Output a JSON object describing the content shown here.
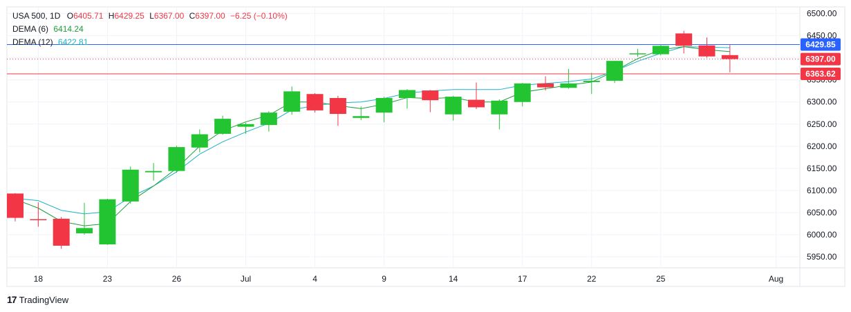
{
  "legend": {
    "symbol_label": "USA 500, 1D",
    "open_label": "O",
    "open": "6405.71",
    "high_label": "H",
    "high": "6429.25",
    "low_label": "L",
    "low": "6367.00",
    "close_label": "C",
    "close": "6397.00",
    "change": "−6.25 (−0.10%)",
    "dema6_label": "DEMA (6)",
    "dema6_value": "6414.24",
    "dema12_label": "DEMA (12)",
    "dema12_value": "6422.81"
  },
  "brand": {
    "name": "TradingView",
    "logo": "17"
  },
  "colors": {
    "up": "#22c531",
    "down": "#f23645",
    "dema6": "#1e9e3a",
    "dema12": "#1bb3c9",
    "blue_line": "#2962ff",
    "red_line": "#f23645",
    "grid": "#f0f3fa",
    "axis_border": "#e0e3eb"
  },
  "chart_data": {
    "type": "candlestick",
    "ylim": [
      5925,
      6515
    ],
    "y_ticks": [
      "5950.00",
      "6000.00",
      "6050.00",
      "6100.00",
      "6150.00",
      "6200.00",
      "6250.00",
      "6300.00",
      "6350.00",
      "6400.00",
      "6450.00",
      "6500.00"
    ],
    "y_tick_values": [
      5950,
      6000,
      6050,
      6100,
      6150,
      6200,
      6250,
      6300,
      6350,
      6400,
      6450,
      6500
    ],
    "x_ticks": [
      {
        "label": "18",
        "index": 1
      },
      {
        "label": "23",
        "index": 4
      },
      {
        "label": "26",
        "index": 7
      },
      {
        "label": "Jul",
        "index": 10
      },
      {
        "label": "4",
        "index": 13
      },
      {
        "label": "9",
        "index": 16
      },
      {
        "label": "14",
        "index": 19
      },
      {
        "label": "17",
        "index": 22
      },
      {
        "label": "22",
        "index": 25
      },
      {
        "label": "25",
        "index": 28
      },
      {
        "label": "Aug",
        "index": 33
      }
    ],
    "candles": [
      {
        "o": 6093,
        "h": 6094,
        "l": 6030,
        "c": 6038
      },
      {
        "o": 6035,
        "h": 6073,
        "l": 6018,
        "c": 6033
      },
      {
        "o": 6036,
        "h": 6040,
        "l": 5968,
        "c": 5975
      },
      {
        "o": 6003,
        "h": 6072,
        "l": 6000,
        "c": 6015
      },
      {
        "o": 5978,
        "h": 6081,
        "l": 5977,
        "c": 6080
      },
      {
        "o": 6075,
        "h": 6154,
        "l": 6070,
        "c": 6147
      },
      {
        "o": 6141,
        "h": 6162,
        "l": 6122,
        "c": 6144
      },
      {
        "o": 6144,
        "h": 6201,
        "l": 6140,
        "c": 6198
      },
      {
        "o": 6197,
        "h": 6238,
        "l": 6186,
        "c": 6227
      },
      {
        "o": 6228,
        "h": 6269,
        "l": 6226,
        "c": 6262
      },
      {
        "o": 6244,
        "h": 6253,
        "l": 6228,
        "c": 6250
      },
      {
        "o": 6248,
        "h": 6279,
        "l": 6233,
        "c": 6276
      },
      {
        "o": 6278,
        "h": 6335,
        "l": 6271,
        "c": 6324
      },
      {
        "o": 6318,
        "h": 6320,
        "l": 6276,
        "c": 6281
      },
      {
        "o": 6309,
        "h": 6314,
        "l": 6246,
        "c": 6273
      },
      {
        "o": 6264,
        "h": 6290,
        "l": 6259,
        "c": 6268
      },
      {
        "o": 6276,
        "h": 6312,
        "l": 6254,
        "c": 6309
      },
      {
        "o": 6309,
        "h": 6329,
        "l": 6285,
        "c": 6327
      },
      {
        "o": 6326,
        "h": 6327,
        "l": 6277,
        "c": 6304
      },
      {
        "o": 6272,
        "h": 6314,
        "l": 6258,
        "c": 6312
      },
      {
        "o": 6305,
        "h": 6344,
        "l": 6284,
        "c": 6288
      },
      {
        "o": 6272,
        "h": 6306,
        "l": 6238,
        "c": 6303
      },
      {
        "o": 6300,
        "h": 6343,
        "l": 6290,
        "c": 6342
      },
      {
        "o": 6342,
        "h": 6358,
        "l": 6326,
        "c": 6333
      },
      {
        "o": 6332,
        "h": 6375,
        "l": 6330,
        "c": 6342
      },
      {
        "o": 6345,
        "h": 6366,
        "l": 6318,
        "c": 6348
      },
      {
        "o": 6348,
        "h": 6393,
        "l": 6343,
        "c": 6393
      },
      {
        "o": 6408,
        "h": 6420,
        "l": 6402,
        "c": 6410
      },
      {
        "o": 6408,
        "h": 6430,
        "l": 6405,
        "c": 6427
      },
      {
        "o": 6455,
        "h": 6461,
        "l": 6410,
        "c": 6427
      },
      {
        "o": 6428,
        "h": 6446,
        "l": 6400,
        "c": 6403
      },
      {
        "o": 6406,
        "h": 6429,
        "l": 6367,
        "c": 6397
      }
    ],
    "dema6": [
      6080,
      6060,
      6030,
      6020,
      6025,
      6075,
      6110,
      6150,
      6200,
      6235,
      6255,
      6270,
      6300,
      6300,
      6292,
      6285,
      6295,
      6310,
      6308,
      6310,
      6300,
      6300,
      6322,
      6330,
      6338,
      6345,
      6370,
      6398,
      6418,
      6425,
      6418,
      6414
    ],
    "dema12": [
      6082,
      6077,
      6055,
      6047,
      6052,
      6085,
      6110,
      6142,
      6182,
      6210,
      6232,
      6252,
      6282,
      6292,
      6298,
      6300,
      6308,
      6320,
      6325,
      6328,
      6328,
      6328,
      6338,
      6342,
      6346,
      6352,
      6370,
      6392,
      6410,
      6425,
      6424,
      6422.81
    ],
    "price_lines": [
      {
        "value": 6429.85,
        "label": "6429.85",
        "style": "solid",
        "color_key": "blue_line"
      },
      {
        "value": 6397.0,
        "label": "6397.00",
        "style": "dotted",
        "color_key": "red_line"
      },
      {
        "value": 6363.62,
        "label": "6363.62",
        "style": "solid",
        "color_key": "red_line"
      }
    ]
  }
}
